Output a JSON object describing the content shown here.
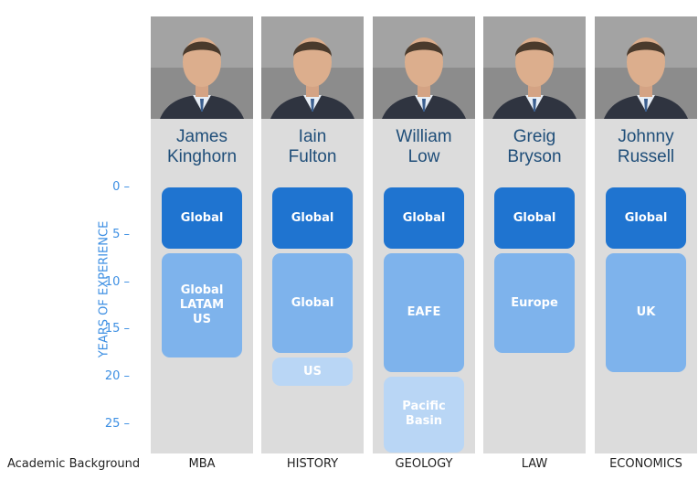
{
  "axis": {
    "title": "YEARS OF EXPERIENCE",
    "ticks": [
      "0",
      "5",
      "10",
      "15",
      "20",
      "25"
    ],
    "tick_values": [
      0,
      5,
      10,
      15,
      20,
      25
    ],
    "range": [
      0,
      28
    ]
  },
  "footer": {
    "label": "Academic Background"
  },
  "people": [
    {
      "first": "James",
      "last": "Kinghorn",
      "degree": "MBA",
      "blocks": [
        {
          "label": "Global",
          "from": 0,
          "to": 6.5,
          "tone": "dark"
        },
        {
          "label": "Global\nLATAM\nUS",
          "from": 7,
          "to": 18,
          "tone": "mid"
        }
      ]
    },
    {
      "first": "Iain",
      "last": "Fulton",
      "degree": "HISTORY",
      "blocks": [
        {
          "label": "Global",
          "from": 0,
          "to": 6.5,
          "tone": "dark"
        },
        {
          "label": "Global",
          "from": 7,
          "to": 17.5,
          "tone": "mid"
        },
        {
          "label": "US",
          "from": 18,
          "to": 21,
          "tone": "light"
        }
      ]
    },
    {
      "first": "William",
      "last": "Low",
      "degree": "GEOLOGY",
      "blocks": [
        {
          "label": "Global",
          "from": 0,
          "to": 6.5,
          "tone": "dark"
        },
        {
          "label": "EAFE",
          "from": 7,
          "to": 19.5,
          "tone": "mid"
        },
        {
          "label": "Pacific\nBasin",
          "from": 20,
          "to": 28,
          "tone": "light"
        }
      ]
    },
    {
      "first": "Greig",
      "last": "Bryson",
      "degree": "LAW",
      "blocks": [
        {
          "label": "Global",
          "from": 0,
          "to": 6.5,
          "tone": "dark"
        },
        {
          "label": "Europe",
          "from": 7,
          "to": 17.5,
          "tone": "mid"
        }
      ]
    },
    {
      "first": "Johnny",
      "last": "Russell",
      "degree": "ECONOMICS",
      "blocks": [
        {
          "label": "Global",
          "from": 0,
          "to": 6.5,
          "tone": "dark"
        },
        {
          "label": "UK",
          "from": 7,
          "to": 19.5,
          "tone": "mid"
        }
      ]
    }
  ]
}
